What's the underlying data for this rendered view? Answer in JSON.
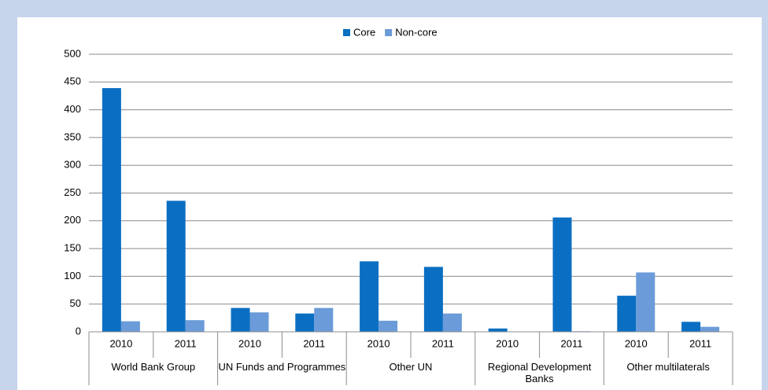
{
  "chart_data": {
    "type": "bar",
    "categories": [
      "2010",
      "2011",
      "2010",
      "2011",
      "2010",
      "2011",
      "2010",
      "2011",
      "2010",
      "2011"
    ],
    "groups": [
      "World Bank Group",
      "UN Funds and Programmes",
      "Other UN",
      "Regional Development Banks",
      "Other multilaterals"
    ],
    "series": [
      {
        "name": "Core",
        "color": "#0a6fc2",
        "values": [
          439,
          236,
          43,
          33,
          127,
          117,
          6,
          206,
          65,
          18
        ]
      },
      {
        "name": "Non-core",
        "color": "#6b9bd8",
        "values": [
          19,
          21,
          35,
          43,
          20,
          33,
          0,
          1,
          107,
          9
        ]
      }
    ],
    "ylim": [
      0,
      500
    ],
    "yticks": [
      0,
      50,
      100,
      150,
      200,
      250,
      300,
      350,
      400,
      450,
      500
    ],
    "grid": true,
    "legend": "top"
  }
}
